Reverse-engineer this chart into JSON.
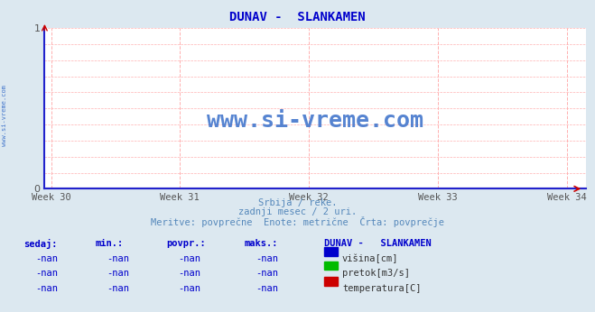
{
  "title": "DUNAV -  SLANKAMEN",
  "title_color": "#0000cc",
  "bg_color": "#dce8f0",
  "plot_bg_color": "#ffffff",
  "axis_color": "#2222cc",
  "x_tick_labels": [
    "Week 30",
    "Week 31",
    "Week 32",
    "Week 33",
    "Week 34"
  ],
  "x_tick_positions": [
    0,
    1,
    2,
    3,
    4
  ],
  "ylim": [
    0,
    1
  ],
  "xlim": [
    -0.05,
    4.15
  ],
  "ylabel_left": "www.si-vreme.com",
  "subtitle1": "Srbija / reke.",
  "subtitle2": "zadnji mesec / 2 uri.",
  "subtitle3": "Meritve: povprečne  Enote: metrične  Črta: povprečje",
  "subtitle_color": "#5588bb",
  "watermark_text": "www.si-vreme.com",
  "watermark_color": "#4477cc",
  "legend_colors": [
    "#0000cc",
    "#00bb00",
    "#cc0000"
  ],
  "legend_labels": [
    "višina[cm]",
    "pretok[m3/s]",
    "temperatura[C]"
  ],
  "ytick_positions": [
    0,
    1
  ],
  "ytick_labels": [
    "0",
    "1"
  ],
  "vgrid_color": "#ffb0b0",
  "hgrid_color": "#ffb0b0",
  "table_header_color": "#0000cc",
  "table_data_color": "#0000cc",
  "table_label_color": "#333333"
}
